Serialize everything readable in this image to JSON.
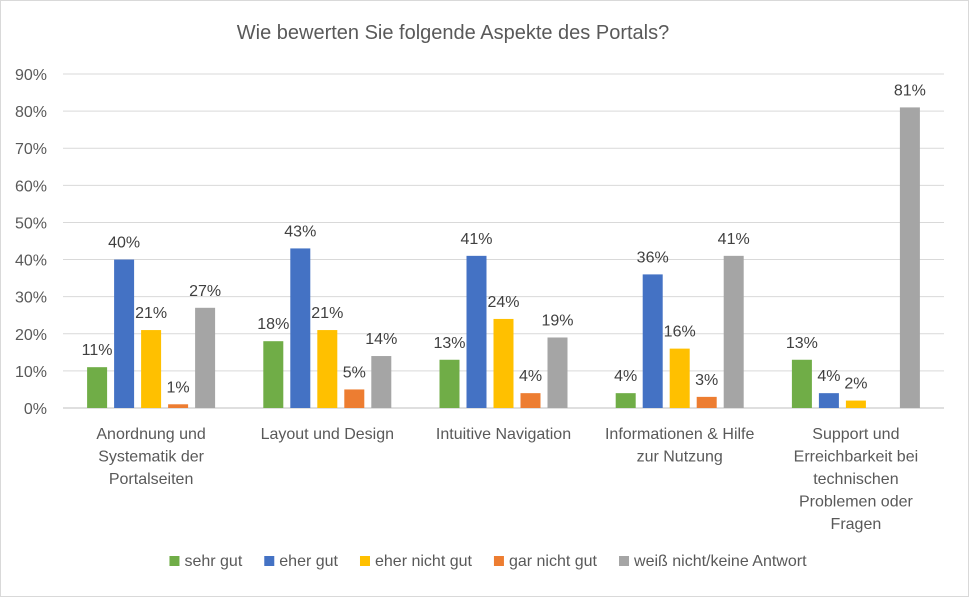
{
  "chart_data": {
    "type": "bar",
    "title": "Wie bewerten Sie folgende Aspekte des Portals?",
    "xlabel": "",
    "ylabel": "",
    "ylim": [
      0,
      90
    ],
    "y_ticks": [
      "0%",
      "10%",
      "20%",
      "30%",
      "40%",
      "50%",
      "60%",
      "70%",
      "80%",
      "90%"
    ],
    "grid": true,
    "legend_position": "bottom",
    "categories": [
      [
        "Anordnung und",
        "Systematik der",
        "Portalseiten"
      ],
      [
        "Layout und Design"
      ],
      [
        "Intuitive Navigation"
      ],
      [
        "Informationen & Hilfe",
        "zur Nutzung"
      ],
      [
        "Support und",
        "Erreichbarkeit bei",
        "technischen",
        "Problemen oder",
        "Fragen"
      ]
    ],
    "series": [
      {
        "name": "sehr gut",
        "color": "#70ad47",
        "values": [
          11,
          18,
          13,
          4,
          13
        ]
      },
      {
        "name": "eher gut",
        "color": "#4472c4",
        "values": [
          40,
          43,
          41,
          36,
          4
        ]
      },
      {
        "name": "eher nicht gut",
        "color": "#ffc000",
        "values": [
          21,
          21,
          24,
          16,
          2
        ]
      },
      {
        "name": "gar nicht gut",
        "color": "#ed7d31",
        "values": [
          1,
          5,
          4,
          3,
          null
        ]
      },
      {
        "name": "weiß nicht/keine Antwort",
        "color": "#a5a5a5",
        "values": [
          27,
          14,
          19,
          41,
          81
        ]
      }
    ],
    "value_suffix": "%"
  }
}
